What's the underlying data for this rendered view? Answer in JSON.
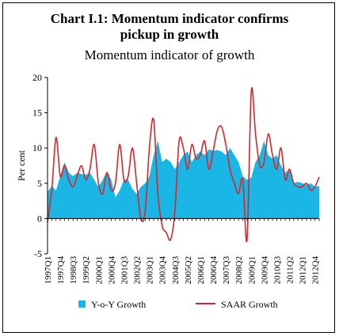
{
  "chart_data": {
    "type": "area",
    "title": "Chart I.1: Momentum indicator confirms pickup in growth",
    "title_lines": [
      "Chart I.1: Momentum indicator confirms",
      "pickup in growth"
    ],
    "subtitle": "Momentum indicator of growth",
    "xlabel": "",
    "ylabel": "Per cent",
    "ylim": [
      -5,
      20
    ],
    "yticks": [
      -5,
      0,
      5,
      10,
      15,
      20
    ],
    "legend_position": "bottom",
    "grid": false,
    "x": [
      "1997Q1",
      "1997Q2",
      "1997Q3",
      "1997Q4",
      "1998Q1",
      "1998Q2",
      "1998Q3",
      "1998Q4",
      "1999Q1",
      "1999Q2",
      "1999Q3",
      "1999Q4",
      "2000Q1",
      "2000Q2",
      "2000Q3",
      "2000Q4",
      "2001Q1",
      "2001Q2",
      "2001Q3",
      "2001Q4",
      "2002Q1",
      "2002Q2",
      "2002Q3",
      "2002Q4",
      "2003Q1",
      "2003Q2",
      "2003Q3",
      "2003Q4",
      "2004Q1",
      "2004Q2",
      "2004Q3",
      "2004Q4",
      "2005Q1",
      "2005Q2",
      "2005Q3",
      "2005Q4",
      "2006Q1",
      "2006Q2",
      "2006Q3",
      "2006Q4",
      "2007Q1",
      "2007Q2",
      "2007Q3",
      "2007Q4",
      "2008Q1",
      "2008Q2",
      "2008Q3",
      "2008Q4",
      "2009Q1",
      "2009Q2",
      "2009Q3",
      "2009Q4",
      "2010Q1",
      "2010Q2",
      "2010Q3",
      "2010Q4",
      "2011Q1",
      "2011Q2",
      "2011Q3",
      "2011Q4",
      "2012Q1",
      "2012Q2",
      "2012Q3",
      "2012Q4",
      "2013Q1"
    ],
    "xtick_labels": [
      "1997Q1",
      "1997Q4",
      "1998Q3",
      "1999Q2",
      "2000Q1",
      "2000Q4",
      "2001Q3",
      "2002Q2",
      "2003Q1",
      "2003Q4",
      "2004Q3",
      "2005Q2",
      "2006Q1",
      "2006Q4",
      "2007Q3",
      "2008Q2",
      "2009Q1",
      "2009Q4",
      "2010Q3",
      "2011Q2",
      "2012Q1",
      "2012Q4"
    ],
    "series": [
      {
        "name": "Y-o-Y Growth",
        "kind": "area",
        "color": "#1ab7e6",
        "values": [
          3.8,
          4.6,
          4.0,
          6.0,
          8.0,
          6.5,
          6.0,
          6.5,
          6.3,
          6.2,
          6.5,
          5.5,
          4.5,
          5.5,
          6.7,
          5.5,
          3.0,
          4.0,
          5.5,
          5.5,
          4.2,
          3.5,
          4.5,
          5.0,
          6.0,
          9.0,
          11.0,
          8.0,
          8.5,
          8.0,
          7.0,
          8.0,
          9.0,
          9.5,
          8.0,
          9.0,
          9.5,
          9.0,
          9.8,
          9.6,
          9.7,
          9.5,
          9.0,
          10.0,
          9.0,
          8.0,
          6.0,
          5.5,
          5.8,
          8.0,
          9.0,
          11.0,
          9.0,
          8.5,
          9.0,
          7.5,
          6.5,
          7.0,
          5.0,
          5.2,
          5.0,
          4.8,
          5.0,
          4.5,
          4.6
        ]
      },
      {
        "name": "SAAR Growth",
        "kind": "line",
        "color": "#d7262a",
        "values": [
          -0.5,
          4.0,
          11.5,
          6.0,
          7.5,
          5.5,
          4.5,
          6.0,
          7.5,
          5.5,
          7.0,
          10.5,
          5.0,
          3.5,
          6.5,
          4.0,
          5.0,
          10.5,
          5.5,
          6.0,
          10.0,
          5.0,
          0.0,
          1.0,
          10.0,
          14.0,
          3.5,
          -1.0,
          -2.0,
          -3.0,
          1.0,
          11.0,
          10.0,
          7.0,
          10.5,
          8.5,
          9.0,
          11.0,
          7.0,
          9.5,
          12.5,
          13.0,
          10.5,
          7.0,
          5.0,
          3.5,
          5.5,
          -3.0,
          18.0,
          12.0,
          7.5,
          8.0,
          12.0,
          9.0,
          7.0,
          10.0,
          5.5,
          7.0,
          5.0,
          4.5,
          4.5,
          5.0,
          4.0,
          4.5,
          5.9
        ]
      }
    ]
  }
}
